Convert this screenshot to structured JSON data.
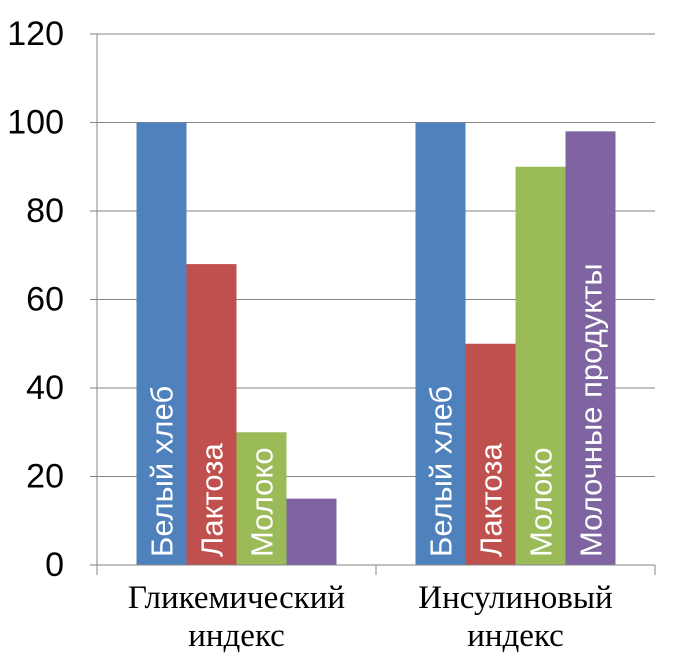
{
  "chart_data": {
    "type": "bar",
    "categories": [
      [
        "Гликемический",
        "индекс"
      ],
      [
        "Инсулиновый",
        "индекс"
      ]
    ],
    "series": [
      {
        "name": "Белый хлеб",
        "color": "#4F81BD",
        "values": [
          100,
          100
        ]
      },
      {
        "name": "Лактоза",
        "color": "#C0504D",
        "values": [
          68,
          50
        ]
      },
      {
        "name": "Молоко",
        "color": "#9BBB59",
        "values": [
          30,
          90
        ]
      },
      {
        "name": "Молочные продукты",
        "color": "#8064A2",
        "values": [
          15,
          98
        ]
      }
    ],
    "bar_labels": [
      [
        "Белый хлеб",
        "Белый хлеб"
      ],
      [
        "Лактоза",
        "Лактоза"
      ],
      [
        "Молоко",
        "Молоко"
      ],
      [
        "",
        "Молочные продукты"
      ]
    ],
    "ylim": [
      0,
      120
    ],
    "yticks": [
      0,
      20,
      40,
      60,
      80,
      100,
      120
    ],
    "grid": true,
    "legend": "none"
  }
}
